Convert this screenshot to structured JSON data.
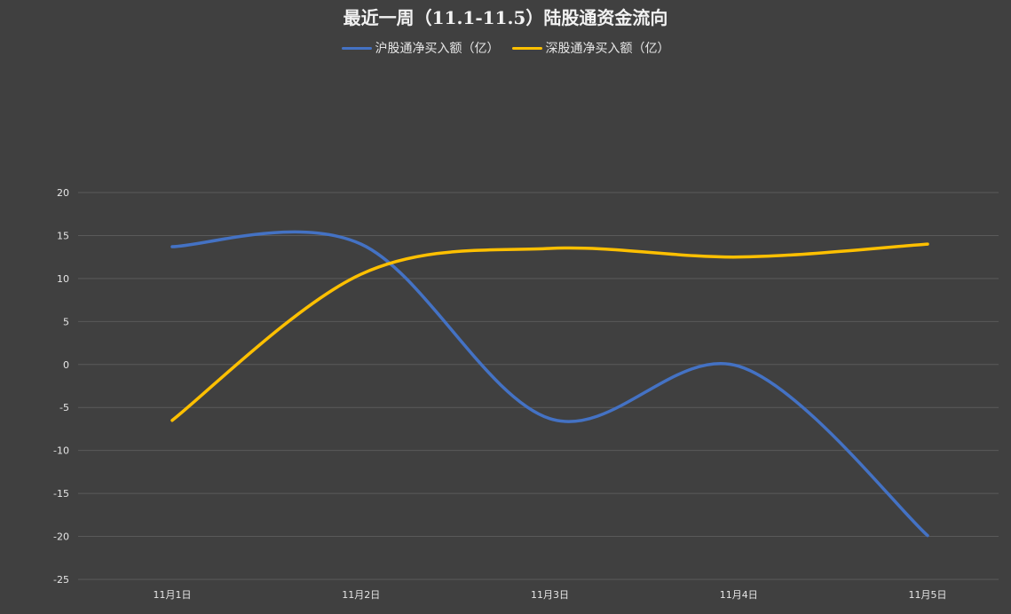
{
  "chart_data": {
    "type": "line",
    "title": "最近一周（11.1-11.5）陆股通资金流向",
    "categories": [
      "11月1日",
      "11月2日",
      "11月3日",
      "11月4日",
      "11月5日"
    ],
    "series": [
      {
        "name": "沪股通净买入额（亿）",
        "color": "#4472c4",
        "values": [
          13.7,
          14.0,
          -6.3,
          -0.2,
          -19.9
        ]
      },
      {
        "name": "深股通净买入额（亿）",
        "color": "#ffc000",
        "values": [
          -6.5,
          10.5,
          13.5,
          12.5,
          14.0
        ]
      }
    ],
    "ylim": [
      -25,
      20
    ],
    "yticks": [
      20,
      15,
      10,
      5,
      0,
      -5,
      -10,
      -15,
      -20,
      -25
    ],
    "smooth": true,
    "grid": true,
    "legend_position": "top"
  }
}
